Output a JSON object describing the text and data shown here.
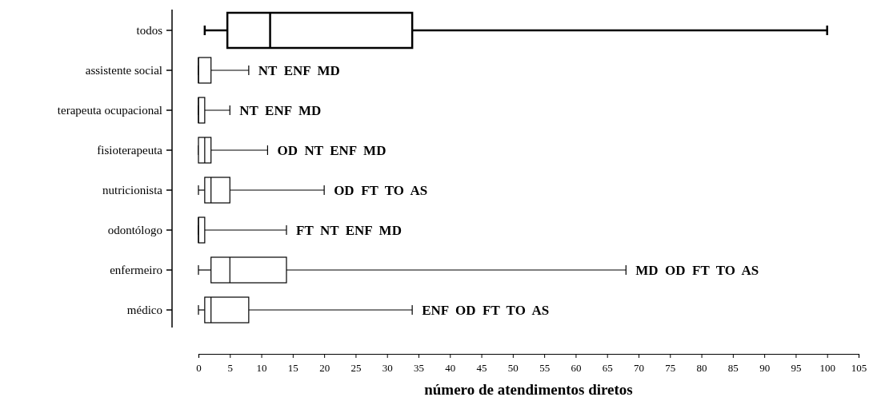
{
  "chart_data": {
    "type": "box",
    "orientation": "horizontal",
    "xlabel": "número de atendimentos diretos",
    "categories": [
      "todos",
      "assistente social",
      "terapeuta ocupacional",
      "fisioterapeuta",
      "nutricionista",
      "odontólogo",
      "enfermeiro",
      "médico"
    ],
    "boxes": [
      {
        "low": 1,
        "q1": 4.6,
        "median": 11.4,
        "q3": 34,
        "high": 100
      },
      {
        "low": 0,
        "q1": 0,
        "median": 0,
        "q3": 2,
        "high": 8
      },
      {
        "low": 0,
        "q1": 0,
        "median": 0,
        "q3": 1,
        "high": 5
      },
      {
        "low": 0,
        "q1": 0,
        "median": 1,
        "q3": 2,
        "high": 11
      },
      {
        "low": 0,
        "q1": 1,
        "median": 2,
        "q3": 5,
        "high": 20
      },
      {
        "low": 0,
        "q1": 0,
        "median": 0,
        "q3": 1,
        "high": 14
      },
      {
        "low": 0,
        "q1": 2,
        "median": 5,
        "q3": 14,
        "high": 68
      },
      {
        "low": 0,
        "q1": 1,
        "median": 2,
        "q3": 8,
        "high": 34
      }
    ],
    "xlim": [
      0,
      105
    ],
    "xticks": [
      0,
      5,
      10,
      15,
      20,
      25,
      30,
      35,
      40,
      45,
      50,
      55,
      60,
      65,
      70,
      75,
      80,
      85,
      90,
      95,
      100,
      105
    ],
    "annotations": [
      {
        "text": "NT  ENF  MD",
        "x": 8,
        "y": "assistente social"
      },
      {
        "text": "NT  ENF  MD",
        "x": 5,
        "y": "terapeuta ocupacional"
      },
      {
        "text": "OD  NT  ENF  MD",
        "x": 11,
        "y": "fisioterapeuta"
      },
      {
        "text": "OD  FT  TO  AS",
        "x": 20,
        "y": "nutricionista"
      },
      {
        "text": "FT  NT  ENF  MD",
        "x": 14,
        "y": "odontólogo"
      },
      {
        "text": "MD  OD  FT  TO  AS",
        "x": 68,
        "y": "enfermeiro"
      },
      {
        "text": "ENF  OD  FT  TO  AS",
        "x": 34,
        "y": "médico"
      }
    ]
  }
}
